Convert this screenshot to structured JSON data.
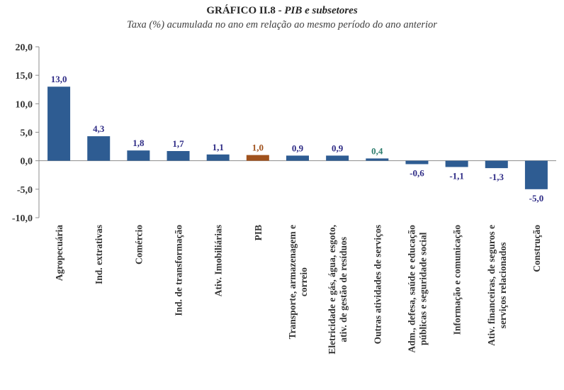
{
  "title_prefix": "GRÁFICO II.8 - ",
  "title_italic": "PIB e subsetores",
  "subtitle": "Taxa (%) acumulada no ano em relação ao  mesmo período do ano anterior",
  "colors": {
    "bar": "#2E5C92",
    "highlight": "#A0521D",
    "label": "#2F2C86",
    "label_alt": "#2E7D6E",
    "axis": "#8C8C8C"
  },
  "chart_data": {
    "type": "bar",
    "ylim": [
      -10,
      20
    ],
    "yticks": [
      20,
      15,
      10,
      5,
      0,
      -5,
      -10
    ],
    "ytick_labels": [
      "20,0",
      "15,0",
      "10,0",
      "5,0",
      "0,0",
      "-5,0",
      "-10,0"
    ],
    "categories": [
      [
        "Agropecuária"
      ],
      [
        "Ind. extrativas"
      ],
      [
        "Comércio"
      ],
      [
        "Ind. de transformação"
      ],
      [
        "Ativ. Imobiliárias"
      ],
      [
        "PIB"
      ],
      [
        "Transporte, armazenagem e",
        "correio"
      ],
      [
        "Eletricidade e gás, água, esgoto,",
        "ativ. de gestão de resíduos"
      ],
      [
        "Outras atividades de serviços"
      ],
      [
        "Adm., defesa, saúde e educação",
        "públicas e seguridade social"
      ],
      [
        "Informação e comunicação"
      ],
      [
        "Ativ. financeiras, de seguros e",
        "serviços relacionados"
      ],
      [
        "Construção"
      ]
    ],
    "values": [
      13.0,
      4.3,
      1.8,
      1.7,
      1.1,
      1.0,
      0.9,
      0.9,
      0.4,
      -0.6,
      -1.1,
      -1.3,
      -5.0
    ],
    "data_labels": [
      "13,0",
      "4,3",
      "1,8",
      "1,7",
      "1,1",
      "1,0",
      "0,9",
      "0,9",
      "0,4",
      "-0,6",
      "-1,1",
      "-1,3",
      "-5,0"
    ],
    "highlight_index": 5,
    "alt_label_index": 8
  }
}
